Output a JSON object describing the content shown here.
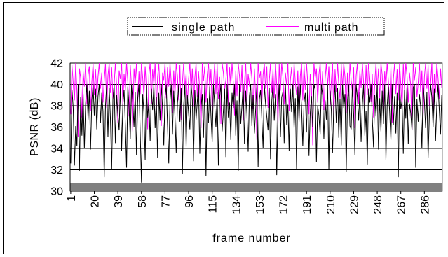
{
  "chart_data": {
    "type": "line",
    "title": "",
    "xlabel": "frame number",
    "ylabel": "PSNR (dB)",
    "ylim": [
      30,
      42
    ],
    "yticks": [
      "30",
      "32",
      "34",
      "36",
      "38",
      "40",
      "42"
    ],
    "xtick_labels": [
      "1",
      "20",
      "39",
      "58",
      "77",
      "96",
      "115",
      "134",
      "153",
      "172",
      "191",
      "210",
      "229",
      "248",
      "267",
      "286"
    ],
    "x_count": 300,
    "grid": "horizontal",
    "legend_position": "top",
    "colors": {
      "single path": "#000000",
      "multi path": "#ff00ff"
    },
    "series": [
      {
        "name": "single path",
        "values": [
          32.6,
          39.5,
          37.8,
          32.4,
          36.1,
          34.2,
          40.0,
          31.9,
          38.8,
          35.2,
          39.1,
          34.0,
          38.2,
          40.0,
          36.7,
          39.4,
          33.9,
          38.5,
          40.0,
          37.1,
          39.6,
          35.8,
          38.9,
          40.0,
          36.4,
          39.2,
          37.5,
          31.3,
          38.0,
          40.0,
          35.1,
          39.7,
          36.8,
          32.1,
          38.6,
          40.0,
          34.5,
          39.0,
          37.2,
          35.7,
          40.0,
          33.8,
          38.1,
          39.5,
          36.3,
          32.2,
          39.8,
          37.9,
          34.9,
          40.0,
          38.4,
          36.0,
          39.3,
          33.4,
          38.7,
          40.0,
          35.5,
          30.8,
          39.1,
          37.4,
          32.9,
          40.0,
          36.9,
          38.3,
          34.7,
          39.6,
          37.6,
          40.0,
          35.9,
          38.8,
          33.1,
          39.2,
          36.6,
          40.0,
          37.7,
          34.3,
          38.9,
          39.9,
          36.2,
          32.6,
          38.5,
          40.0,
          35.3,
          39.4,
          37.0,
          33.6,
          38.2,
          40.0,
          36.5,
          39.7,
          31.6,
          38.0,
          40.0,
          34.1,
          39.0,
          37.3,
          35.8,
          40.0,
          38.6,
          32.8,
          39.5,
          36.7,
          38.4,
          40.0,
          33.5,
          37.9,
          39.1,
          35.0,
          40.0,
          31.4,
          38.7,
          36.4,
          39.8,
          37.1,
          34.6,
          40.0,
          38.1,
          36.0,
          39.3,
          32.4,
          38.8,
          40.0,
          35.6,
          37.5,
          39.6,
          33.2,
          40.0,
          36.9,
          38.3,
          34.8,
          39.2,
          37.8,
          40.0,
          35.2,
          38.5,
          31.9,
          39.9,
          36.3,
          38.0,
          40.0,
          34.4,
          39.4,
          37.2,
          33.7,
          38.9,
          40.0,
          36.1,
          39.0,
          35.4,
          37.6,
          40.0,
          32.3,
          38.6,
          39.5,
          36.8,
          34.0,
          40.0,
          38.2,
          37.0,
          35.7,
          39.7,
          33.0,
          38.4,
          40.0,
          36.6,
          39.1,
          31.5,
          37.7,
          40.0,
          35.1,
          38.8,
          39.3,
          34.5,
          40.0,
          36.2,
          38.1,
          33.8,
          39.6,
          37.4,
          40.0,
          35.9,
          38.7,
          32.1,
          39.8,
          36.5,
          40.0,
          37.9,
          34.2,
          38.3,
          39.2,
          35.5,
          40.0,
          33.3,
          37.3,
          38.9,
          36.0,
          40.0,
          39.5,
          32.7,
          38.0,
          37.1,
          35.3,
          40.0,
          39.0,
          34.9,
          38.5,
          36.7,
          40.0,
          32.0,
          39.4,
          37.6,
          33.6,
          38.2,
          40.0,
          36.4,
          39.7,
          35.0,
          38.6,
          34.3,
          40.0,
          37.8,
          39.1,
          31.8,
          38.4,
          40.0,
          36.1,
          35.8,
          39.9,
          37.2,
          33.4,
          40.0,
          38.8,
          36.6,
          39.3,
          34.6,
          38.1,
          40.0,
          35.2,
          37.5,
          32.5,
          39.6,
          38.3,
          40.0,
          36.9,
          34.1,
          39.0,
          37.0,
          40.0,
          33.9,
          38.7,
          35.6,
          39.4,
          36.3,
          40.0,
          32.9,
          38.0,
          39.8,
          37.4,
          34.8,
          40.0,
          36.2,
          38.9,
          35.4,
          39.2,
          31.3,
          40.0,
          37.7,
          38.5,
          33.5,
          39.5,
          36.8,
          40.0,
          34.4,
          38.2,
          37.3,
          35.7,
          39.7,
          40.0,
          32.2,
          38.6,
          36.5,
          39.1,
          37.9,
          34.0,
          40.0,
          38.4,
          35.9,
          39.3,
          33.1,
          37.1,
          40.0,
          38.8,
          36.0,
          39.6,
          34.7,
          38.1,
          40.0,
          37.6,
          35.3,
          39.0
        ]
      },
      {
        "name": "multi path",
        "values": [
          37.2,
          41.8,
          40.1,
          38.5,
          42.0,
          39.3,
          35.1,
          41.5,
          40.6,
          36.9,
          41.2,
          39.8,
          42.0,
          38.1,
          40.9,
          41.7,
          37.5,
          40.2,
          42.0,
          39.0,
          41.4,
          38.8,
          40.7,
          42.0,
          39.6,
          41.1,
          38.3,
          40.4,
          41.9,
          37.8,
          40.8,
          42.0,
          39.2,
          41.6,
          38.6,
          40.0,
          42.0,
          39.9,
          36.4,
          41.3,
          40.5,
          42.0,
          38.0,
          41.0,
          39.4,
          42.0,
          40.3,
          37.0,
          41.8,
          39.7,
          35.6,
          41.5,
          40.1,
          42.0,
          38.4,
          41.2,
          39.1,
          42.0,
          40.6,
          38.9,
          41.7,
          39.5,
          35.8,
          40.9,
          42.0,
          38.2,
          41.4,
          40.0,
          42.0,
          37.6,
          40.7,
          41.9,
          39.3,
          36.1,
          41.1,
          40.4,
          42.0,
          38.7,
          41.6,
          39.8,
          42.0,
          40.2,
          37.3,
          41.3,
          39.0,
          42.0,
          40.8,
          38.5,
          41.8,
          36.7,
          40.1,
          42.0,
          39.6,
          41.0,
          38.1,
          40.5,
          42.0,
          39.2,
          41.5,
          37.9,
          40.6,
          42.0,
          38.8,
          41.2,
          39.4,
          35.9,
          42.0,
          40.3,
          41.7,
          38.3,
          40.9,
          42.0,
          39.7,
          41.4,
          37.4,
          40.0,
          42.0,
          39.1,
          41.9,
          38.6,
          40.7,
          36.3,
          42.0,
          41.1,
          39.5,
          40.4,
          42.0,
          38.0,
          41.6,
          39.9,
          42.0,
          40.2,
          37.1,
          41.3,
          38.9,
          42.0,
          40.8,
          39.3,
          41.8,
          36.6,
          40.1,
          42.0,
          38.4,
          41.0,
          39.8,
          42.0,
          40.5,
          37.7,
          41.5,
          39.0,
          34.8,
          42.0,
          40.6,
          41.2,
          38.2,
          40.9,
          42.0,
          39.6,
          41.7,
          37.8,
          40.3,
          42.0,
          39.2,
          41.4,
          38.7,
          42.0,
          40.0,
          36.2,
          41.9,
          39.4,
          42.0,
          40.7,
          38.1,
          41.1,
          39.9,
          42.0,
          37.5,
          40.4,
          41.6,
          38.8,
          42.0,
          40.2,
          39.0,
          41.3,
          36.8,
          40.8,
          42.0,
          38.5,
          41.8,
          39.5,
          42.0,
          40.1,
          37.2,
          41.0,
          39.7,
          34.3,
          42.0,
          40.6,
          41.5,
          38.3,
          40.9,
          42.0,
          39.1,
          41.2,
          37.6,
          40.5,
          42.0,
          39.8,
          41.7,
          38.0,
          40.3,
          42.0,
          36.5,
          41.4,
          39.3,
          42.0,
          40.0,
          38.6,
          41.9,
          39.6,
          42.0,
          40.7,
          37.3,
          41.1,
          38.9,
          42.0,
          40.4,
          39.2,
          41.6,
          35.9,
          40.8,
          42.0,
          38.2,
          41.3,
          39.7,
          42.0,
          40.2,
          37.9,
          41.8,
          39.0,
          42.0,
          40.6,
          38.4,
          41.0,
          36.9,
          40.1,
          42.0,
          39.4,
          41.5,
          38.7,
          42.0,
          40.9,
          37.4,
          41.2,
          39.8,
          42.0,
          40.3,
          38.1,
          41.7,
          36.4,
          40.5,
          42.0,
          39.1,
          41.4,
          38.5,
          42.0,
          40.0,
          37.7,
          41.9,
          39.5,
          42.0,
          40.8,
          38.3,
          41.1,
          39.9,
          35.7,
          42.0,
          40.4,
          41.6,
          38.8,
          40.2,
          42.0,
          39.3,
          41.3,
          37.1,
          40.7,
          42.0,
          39.6,
          41.8,
          38.0,
          40.1,
          42.0,
          36.7,
          41.0,
          39.2,
          42.0,
          40.6,
          38.6,
          41.5,
          39.7
        ]
      }
    ]
  }
}
